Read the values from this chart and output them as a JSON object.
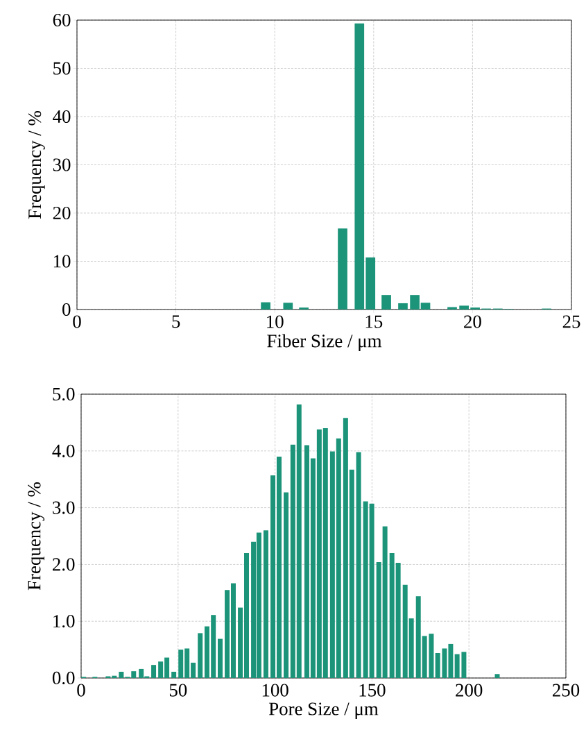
{
  "chart_data": [
    {
      "type": "bar",
      "xlabel": "Fiber Size / μm",
      "ylabel": "Frequency / %",
      "color": "#1b9479",
      "grid": true,
      "x": [
        9.54,
        10.67,
        11.47,
        13.43,
        14.28,
        14.84,
        15.64,
        16.48,
        17.08,
        17.62,
        18.97,
        19.57,
        20.13,
        20.69,
        21.28,
        21.83,
        23.74
      ],
      "values": [
        1.5,
        1.4,
        0.4,
        16.8,
        59.3,
        10.8,
        3.0,
        1.3,
        3.0,
        1.4,
        0.5,
        0.8,
        0.4,
        0.2,
        0.2,
        0.1,
        0.2
      ],
      "xlim": [
        0,
        25
      ],
      "xticks": [
        0,
        5,
        10,
        15,
        20,
        25
      ],
      "ylim": [
        0,
        60
      ],
      "yticks": [
        0,
        10,
        20,
        30,
        40,
        50,
        60
      ]
    },
    {
      "type": "bar",
      "xlabel": "Pore Size / μm",
      "ylabel": "Frequency / %",
      "color": "#1b9479",
      "grid": true,
      "x": [
        1.3,
        7.1,
        13.9,
        17.1,
        20.7,
        23.9,
        27.1,
        31.0,
        33.9,
        37.4,
        41.0,
        44.2,
        47.8,
        51.4,
        54.6,
        57.8,
        61.4,
        64.9,
        68.2,
        71.7,
        75.3,
        78.5,
        82.1,
        85.3,
        88.9,
        91.7,
        95.3,
        98.9,
        102.1,
        105.7,
        109.2,
        112.4,
        116.4,
        119.6,
        122.8,
        126.0,
        129.6,
        132.8,
        136.4,
        139.6,
        143.1,
        146.7,
        149.9,
        153.5,
        156.7,
        160.3,
        163.5,
        167.1,
        170.3,
        173.9,
        177.1,
        180.6,
        183.9,
        187.4,
        190.6,
        193.9,
        197.4,
        214.6
      ],
      "values": [
        0.02,
        0.02,
        0.03,
        0.04,
        0.11,
        0.02,
        0.12,
        0.16,
        0.03,
        0.23,
        0.29,
        0.36,
        0.11,
        0.5,
        0.52,
        0.27,
        0.79,
        0.91,
        1.11,
        0.69,
        1.55,
        1.67,
        1.24,
        2.2,
        2.4,
        2.56,
        2.6,
        3.57,
        3.9,
        3.27,
        4.11,
        4.82,
        4.1,
        3.87,
        4.38,
        4.4,
        3.99,
        4.22,
        4.58,
        3.67,
        3.98,
        3.11,
        3.07,
        2.04,
        2.67,
        2.2,
        2.03,
        1.64,
        1.05,
        1.44,
        0.74,
        0.78,
        0.44,
        0.52,
        0.6,
        0.42,
        0.46,
        0.07
      ],
      "xlim": [
        0,
        250
      ],
      "xticks": [
        0,
        50,
        100,
        150,
        200,
        250
      ],
      "ylim": [
        0,
        5
      ],
      "yticks": [
        {
          "value": 0,
          "label": "0.0"
        },
        {
          "value": 1,
          "label": "1.0"
        },
        {
          "value": 2,
          "label": "2.0"
        },
        {
          "value": 3,
          "label": "3.0"
        },
        {
          "value": 4,
          "label": "4.0"
        },
        {
          "value": 5,
          "label": "5.0"
        }
      ]
    }
  ]
}
